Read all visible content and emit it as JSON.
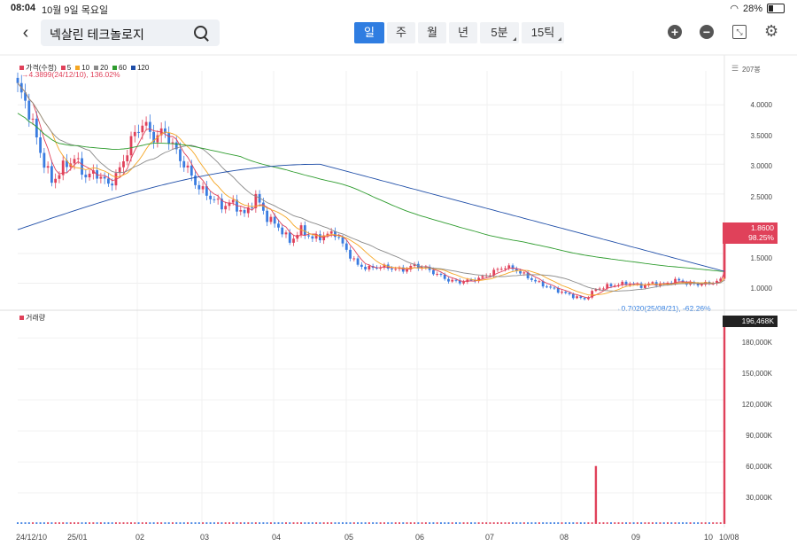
{
  "status": {
    "time": "08:04",
    "date": "10월 9일 목요일",
    "battery": "28%"
  },
  "header": {
    "stock_name": "넥살린 테크놀로지",
    "periods": [
      {
        "label": "일",
        "active": true,
        "dropdown": false,
        "w": 34
      },
      {
        "label": "주",
        "active": false,
        "dropdown": false,
        "w": 32
      },
      {
        "label": "월",
        "active": false,
        "dropdown": false,
        "w": 32
      },
      {
        "label": "년",
        "active": false,
        "dropdown": false,
        "w": 32
      },
      {
        "label": "5분",
        "active": false,
        "dropdown": true,
        "w": 44
      },
      {
        "label": "15틱",
        "active": false,
        "dropdown": true,
        "w": 48
      }
    ]
  },
  "legend": [
    {
      "label": "가격(수정)",
      "color": "#e0415a"
    },
    {
      "label": "5",
      "color": "#e0415a"
    },
    {
      "label": "10",
      "color": "#f5a623"
    },
    {
      "label": "20",
      "color": "#8a8a8a"
    },
    {
      "label": "60",
      "color": "#2e9c2e"
    },
    {
      "label": "120",
      "color": "#1f4ea8"
    }
  ],
  "annotations": {
    "high": "→4.3899(24/12/10), 136.02%",
    "low": "→0.7020(25/08/21), -62.26%"
  },
  "price_axis": {
    "unit": "207봉",
    "ticks": [
      "4.0000",
      "3.5000",
      "3.0000",
      "2.5000",
      "1.5000",
      "1.0000"
    ],
    "current_price": "1.8600",
    "current_change": "98.25%"
  },
  "volume": {
    "legend": "거래량",
    "current": "196,468K",
    "ticks": [
      "180,000K",
      "150,000K",
      "120,000K",
      "90,000K",
      "60,000K",
      "30,000K"
    ]
  },
  "x_axis": [
    "24/12/10",
    "25/01",
    "02",
    "03",
    "04",
    "05",
    "06",
    "07",
    "08",
    "09",
    "10",
    "10/08"
  ],
  "chart_data": {
    "type": "candlestick",
    "title": "",
    "price_range": [
      0.62,
      4.45
    ],
    "volume_range": [
      0,
      196468
    ],
    "ma_periods": [
      5,
      10,
      20,
      60,
      120
    ],
    "close_path": [
      [
        0,
        4.3
      ],
      [
        3,
        3.9
      ],
      [
        6,
        3.2
      ],
      [
        9,
        2.7
      ],
      [
        12,
        2.95
      ],
      [
        15,
        3.1
      ],
      [
        18,
        2.8
      ],
      [
        21,
        2.85
      ],
      [
        24,
        2.65
      ],
      [
        27,
        2.9
      ],
      [
        30,
        3.4
      ],
      [
        33,
        3.7
      ],
      [
        36,
        3.45
      ],
      [
        39,
        3.55
      ],
      [
        42,
        3.2
      ],
      [
        45,
        2.9
      ],
      [
        48,
        2.6
      ],
      [
        51,
        2.45
      ],
      [
        54,
        2.3
      ],
      [
        57,
        2.35
      ],
      [
        60,
        2.15
      ],
      [
        63,
        2.45
      ],
      [
        66,
        2.1
      ],
      [
        69,
        1.95
      ],
      [
        72,
        1.7
      ],
      [
        75,
        1.9
      ],
      [
        78,
        1.75
      ],
      [
        81,
        1.8
      ],
      [
        84,
        1.85
      ],
      [
        87,
        1.55
      ],
      [
        90,
        1.3
      ],
      [
        93,
        1.25
      ],
      [
        96,
        1.28
      ],
      [
        99,
        1.25
      ],
      [
        102,
        1.22
      ],
      [
        105,
        1.3
      ],
      [
        108,
        1.25
      ],
      [
        111,
        1.15
      ],
      [
        114,
        1.05
      ],
      [
        117,
        1.02
      ],
      [
        120,
        1.05
      ],
      [
        123,
        1.1
      ],
      [
        126,
        1.2
      ],
      [
        129,
        1.28
      ],
      [
        132,
        1.22
      ],
      [
        135,
        1.1
      ],
      [
        138,
        1.0
      ],
      [
        141,
        0.92
      ],
      [
        144,
        0.85
      ],
      [
        147,
        0.78
      ],
      [
        150,
        0.73
      ],
      [
        153,
        0.9
      ],
      [
        156,
        0.95
      ],
      [
        159,
        0.98
      ],
      [
        162,
        1.0
      ],
      [
        165,
        0.95
      ],
      [
        168,
        1.0
      ],
      [
        171,
        0.98
      ],
      [
        174,
        1.05
      ],
      [
        177,
        1.0
      ],
      [
        180,
        0.98
      ],
      [
        183,
        1.0
      ],
      [
        186,
        1.05
      ],
      [
        187,
        1.86
      ]
    ],
    "volume_spikes": [
      {
        "index": 153,
        "value": 56000
      },
      {
        "index": 187,
        "value": 196468
      }
    ]
  }
}
